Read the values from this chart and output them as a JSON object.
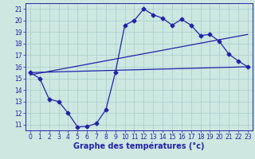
{
  "xlabel": "Graphe des températures (°c)",
  "bg_color": "#cce8e0",
  "line_color": "#2222aa",
  "grid_color": "#aacccc",
  "xlim": [
    -0.5,
    23.5
  ],
  "ylim": [
    10.5,
    21.5
  ],
  "xticks": [
    0,
    1,
    2,
    3,
    4,
    5,
    6,
    7,
    8,
    9,
    10,
    11,
    12,
    13,
    14,
    15,
    16,
    17,
    18,
    19,
    20,
    21,
    22,
    23
  ],
  "yticks": [
    11,
    12,
    13,
    14,
    15,
    16,
    17,
    18,
    19,
    20,
    21
  ],
  "line1_x": [
    0,
    23
  ],
  "line1_y": [
    15.5,
    16.0
  ],
  "line2_x": [
    0,
    23
  ],
  "line2_y": [
    15.3,
    18.8
  ],
  "line3_x": [
    0,
    1,
    2,
    3,
    4,
    5,
    6,
    7,
    8,
    9,
    10,
    11,
    12,
    13,
    14,
    15,
    16,
    17,
    18,
    19,
    20,
    21,
    22,
    23
  ],
  "line3_y": [
    15.5,
    15.0,
    13.2,
    13.0,
    12.0,
    10.8,
    10.85,
    11.1,
    12.3,
    15.5,
    19.6,
    20.0,
    21.0,
    20.5,
    20.2,
    19.6,
    20.1,
    19.6,
    18.7,
    18.8,
    18.2,
    17.1,
    16.5,
    16.0
  ],
  "fontsize_xlabel": 7.0,
  "fontsize_ticks": 5.5,
  "marker_size": 2.5,
  "linewidth": 0.9
}
